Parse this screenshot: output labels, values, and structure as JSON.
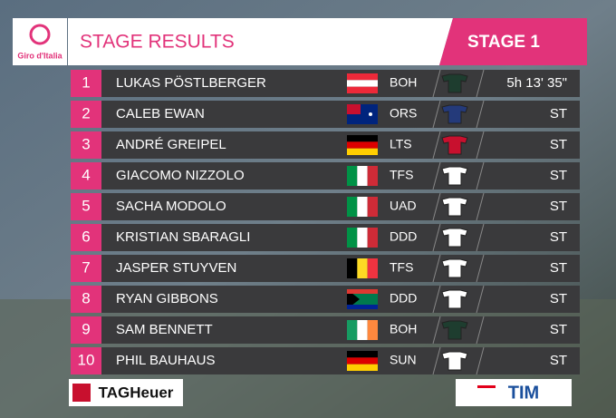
{
  "logo": "Giro d'Italia",
  "header": {
    "title": "STAGE RESULTS",
    "stage": "STAGE 1"
  },
  "table": {
    "rows": [
      {
        "rank": 1,
        "rider": "LUKAS PÖSTLBERGER",
        "team": "BOH",
        "time": "5h 13' 35\""
      },
      {
        "rank": 2,
        "rider": "CALEB EWAN",
        "team": "ORS",
        "time": "ST"
      },
      {
        "rank": 3,
        "rider": "ANDRÉ GREIPEL",
        "team": "LTS",
        "time": "ST"
      },
      {
        "rank": 4,
        "rider": "GIACOMO NIZZOLO",
        "team": "TFS",
        "time": "ST"
      },
      {
        "rank": 5,
        "rider": "SACHA MODOLO",
        "team": "UAD",
        "time": "ST"
      },
      {
        "rank": 6,
        "rider": "KRISTIAN SBARAGLI",
        "team": "DDD",
        "time": "ST"
      },
      {
        "rank": 7,
        "rider": "JASPER STUYVEN",
        "team": "TFS",
        "time": "ST"
      },
      {
        "rank": 8,
        "rider": "RYAN GIBBONS",
        "team": "DDD",
        "time": "ST"
      },
      {
        "rank": 9,
        "rider": "SAM BENNETT",
        "team": "BOH",
        "time": "ST"
      },
      {
        "rank": 10,
        "rider": "PHIL BAUHAUS",
        "team": "SUN",
        "time": "ST"
      }
    ]
  },
  "sponsors": [
    "TAGHeuer",
    "TIM"
  ]
}
